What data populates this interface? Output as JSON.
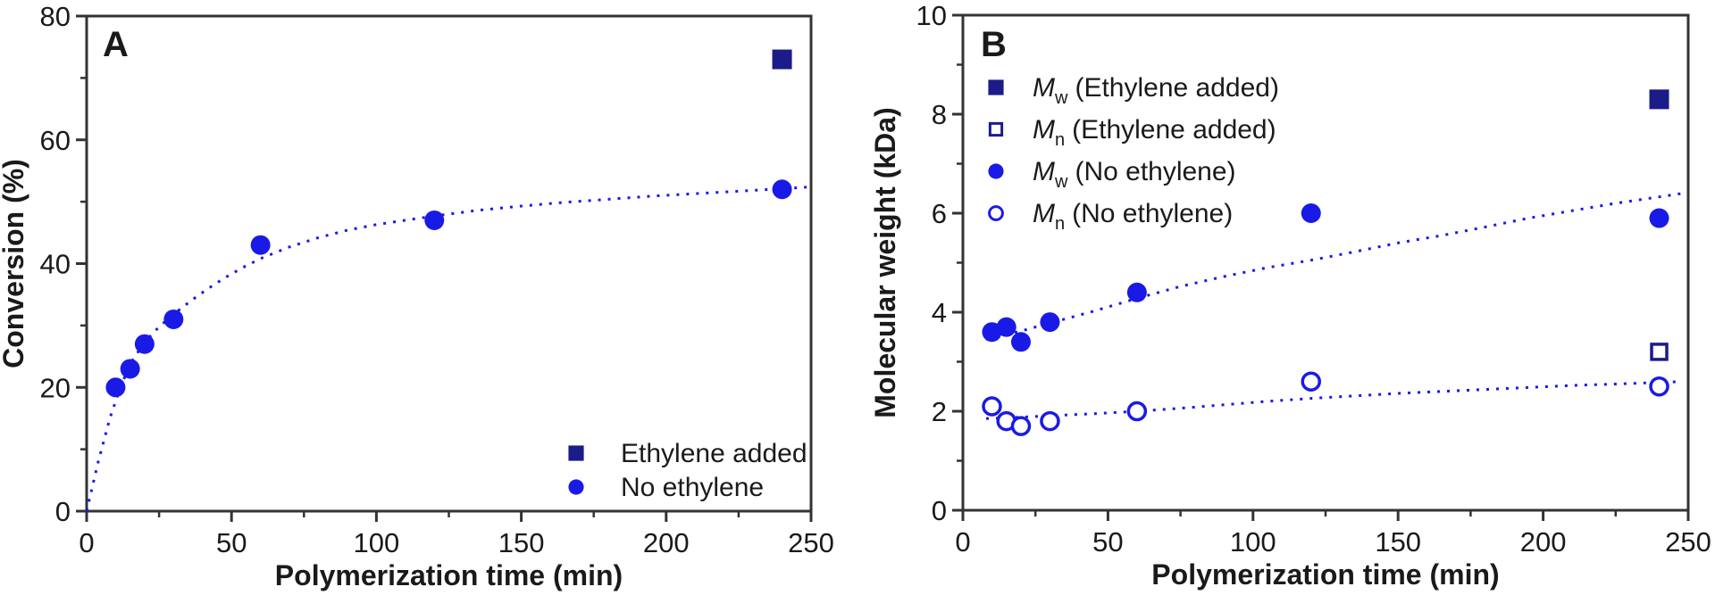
{
  "figure_background": "#ffffff",
  "colors": {
    "blue": "#1a1ae6",
    "navy": "#1b1b8a",
    "frame": "#333333",
    "text": "#1a1a1a"
  },
  "chart_data": [
    {
      "type": "scatter",
      "panel": "A",
      "title": "",
      "xlabel": "Polymerization time (min)",
      "ylabel": "Conversion (%)",
      "xlim": [
        0,
        250
      ],
      "ylim": [
        0,
        80
      ],
      "xticks": [
        0,
        50,
        100,
        150,
        200,
        250
      ],
      "xminorticks": [
        25,
        75,
        125,
        175,
        225
      ],
      "yticks": [
        0,
        20,
        40,
        60,
        80
      ],
      "yminorticks": [
        10,
        30,
        50,
        70
      ],
      "grid": false,
      "series": [
        {
          "name": "Ethylene added",
          "marker": "square-filled",
          "color": "#1b1b8a",
          "points": [
            [
              240,
              73
            ]
          ]
        },
        {
          "name": "No ethylene",
          "marker": "circle-filled",
          "color": "#1a1ae6",
          "points": [
            [
              10,
              20
            ],
            [
              15,
              23
            ],
            [
              20,
              27
            ],
            [
              30,
              31
            ],
            [
              60,
              43
            ],
            [
              120,
              47
            ],
            [
              240,
              52
            ]
          ]
        }
      ],
      "fit_lines": [
        {
          "series": "No ethylene",
          "style": "dotted",
          "color": "#1a1ae6",
          "points": [
            [
              0,
              0
            ],
            [
              4,
              8
            ],
            [
              8,
              15
            ],
            [
              12,
              20.5
            ],
            [
              16,
              24.5
            ],
            [
              20,
              27.3
            ],
            [
              25,
              29.8
            ],
            [
              30,
              31.8
            ],
            [
              36,
              34
            ],
            [
              42,
              36
            ],
            [
              48,
              37.8
            ],
            [
              54,
              39.4
            ],
            [
              60,
              40.8
            ],
            [
              70,
              42.7
            ],
            [
              80,
              44.2
            ],
            [
              90,
              45.4
            ],
            [
              100,
              46.3
            ],
            [
              110,
              47
            ],
            [
              120,
              47.7
            ],
            [
              135,
              48.6
            ],
            [
              150,
              49.3
            ],
            [
              165,
              49.9
            ],
            [
              180,
              50.4
            ],
            [
              195,
              50.9
            ],
            [
              210,
              51.3
            ],
            [
              225,
              51.7
            ],
            [
              240,
              52.1
            ],
            [
              250,
              52.4
            ]
          ]
        }
      ],
      "legend": {
        "position": "lower-right",
        "entries": [
          {
            "label": "Ethylene added",
            "marker": "square-filled",
            "color": "#1b1b8a"
          },
          {
            "label": "No ethylene",
            "marker": "circle-filled",
            "color": "#1a1ae6"
          }
        ]
      }
    },
    {
      "type": "scatter",
      "panel": "B",
      "title": "",
      "xlabel": "Polymerization time (min)",
      "ylabel": "Molecular weight (kDa)",
      "xlim": [
        0,
        250
      ],
      "ylim": [
        0,
        10
      ],
      "xticks": [
        0,
        50,
        100,
        150,
        200,
        250
      ],
      "xminorticks": [
        25,
        75,
        125,
        175,
        225
      ],
      "yticks": [
        0,
        2,
        4,
        6,
        8,
        10
      ],
      "yminorticks": [
        1,
        3,
        5,
        7,
        9
      ],
      "grid": false,
      "series": [
        {
          "name": "Mw (Ethylene added)",
          "marker": "square-filled",
          "color": "#1b1b8a",
          "points": [
            [
              240,
              8.3
            ]
          ]
        },
        {
          "name": "Mn (Ethylene added)",
          "marker": "square-open",
          "color": "#1b1b8a",
          "points": [
            [
              240,
              3.2
            ]
          ]
        },
        {
          "name": "Mw (No ethylene)",
          "marker": "circle-filled",
          "color": "#1a1ae6",
          "points": [
            [
              10,
              3.6
            ],
            [
              15,
              3.7
            ],
            [
              20,
              3.4
            ],
            [
              30,
              3.8
            ],
            [
              60,
              4.4
            ],
            [
              120,
              6.0
            ],
            [
              240,
              5.9
            ]
          ]
        },
        {
          "name": "Mn (No ethylene)",
          "marker": "circle-open",
          "color": "#1a1ae6",
          "points": [
            [
              10,
              2.1
            ],
            [
              15,
              1.8
            ],
            [
              20,
              1.7
            ],
            [
              30,
              1.8
            ],
            [
              60,
              2.0
            ],
            [
              120,
              2.6
            ],
            [
              240,
              2.5
            ]
          ]
        }
      ],
      "fit_lines": [
        {
          "series": "Mw (No ethylene)",
          "style": "dotted",
          "color": "#1a1ae6",
          "points": [
            [
              8,
              3.45
            ],
            [
              20,
              3.62
            ],
            [
              30,
              3.78
            ],
            [
              45,
              4.02
            ],
            [
              60,
              4.28
            ],
            [
              75,
              4.52
            ],
            [
              90,
              4.72
            ],
            [
              105,
              4.9
            ],
            [
              120,
              5.05
            ],
            [
              135,
              5.22
            ],
            [
              150,
              5.4
            ],
            [
              165,
              5.55
            ],
            [
              180,
              5.72
            ],
            [
              195,
              5.9
            ],
            [
              210,
              6.05
            ],
            [
              225,
              6.2
            ],
            [
              240,
              6.33
            ],
            [
              248,
              6.4
            ]
          ]
        },
        {
          "series": "Mn (No ethylene)",
          "style": "dotted",
          "color": "#1a1ae6",
          "points": [
            [
              8,
              1.85
            ],
            [
              20,
              1.88
            ],
            [
              30,
              1.91
            ],
            [
              45,
              1.95
            ],
            [
              60,
              2.0
            ],
            [
              75,
              2.06
            ],
            [
              90,
              2.13
            ],
            [
              105,
              2.2
            ],
            [
              120,
              2.26
            ],
            [
              135,
              2.31
            ],
            [
              150,
              2.36
            ],
            [
              165,
              2.4
            ],
            [
              180,
              2.44
            ],
            [
              195,
              2.48
            ],
            [
              210,
              2.52
            ],
            [
              225,
              2.55
            ],
            [
              240,
              2.58
            ],
            [
              248,
              2.6
            ]
          ]
        }
      ],
      "legend": {
        "position": "upper-left",
        "entries": [
          {
            "prefix": "M",
            "sub": "w",
            "suffix": "(Ethylene added)",
            "marker": "square-filled",
            "color": "#1b1b8a"
          },
          {
            "prefix": "M",
            "sub": "n",
            "suffix": "(Ethylene added)",
            "marker": "square-open",
            "color": "#1b1b8a"
          },
          {
            "prefix": "M",
            "sub": "w",
            "suffix": "(No ethylene)",
            "marker": "circle-filled",
            "color": "#1a1ae6"
          },
          {
            "prefix": "M",
            "sub": "n",
            "suffix": "(No ethylene)",
            "marker": "circle-open",
            "color": "#1a1ae6"
          }
        ]
      }
    }
  ]
}
